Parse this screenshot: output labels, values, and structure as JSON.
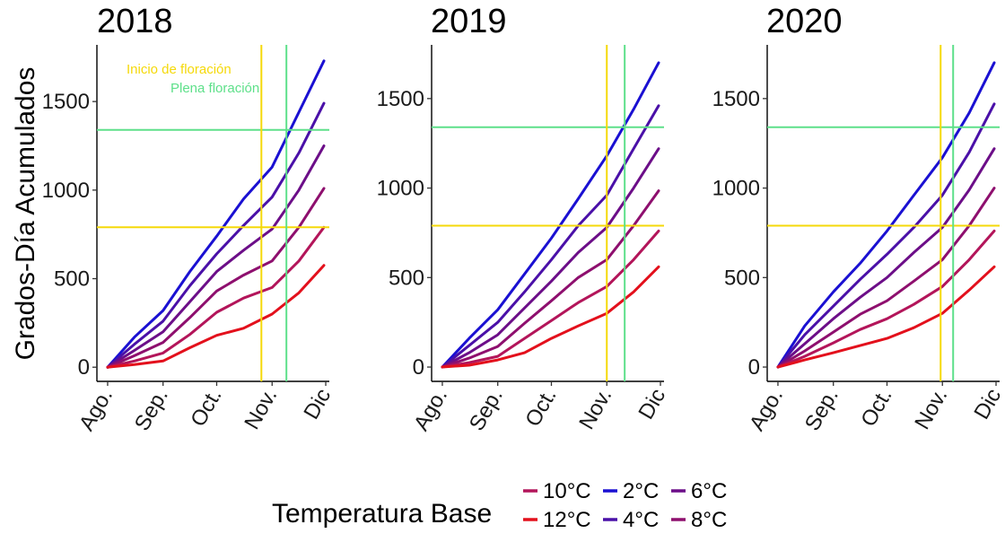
{
  "figure": {
    "ylabel": "Grados-Día Acumulados",
    "legend": {
      "title": "Temperatura Base",
      "items": [
        {
          "label": "10°C",
          "color": "#B3155A"
        },
        {
          "label": "12°C",
          "color": "#E3101C"
        },
        {
          "label": "2°C",
          "color": "#1A10D2"
        },
        {
          "label": "4°C",
          "color": "#4A10A8"
        },
        {
          "label": "6°C",
          "color": "#6C0E88"
        },
        {
          "label": "8°C",
          "color": "#8E0F6E"
        }
      ]
    },
    "annotations": {
      "inicio": {
        "text": "Inicio de floración",
        "color": "#F5D90A"
      },
      "plena": {
        "text": "Plena floración",
        "color": "#5EE08A"
      }
    }
  },
  "chart_data": [
    {
      "type": "line",
      "title": "2018",
      "x_tick_labels": [
        "Ago.",
        "Sep.",
        "Oct.",
        "Nov.",
        "Dic"
      ],
      "x_tick_days": [
        0,
        31,
        61,
        92,
        122
      ],
      "xlim": [
        -6,
        124
      ],
      "ylim": [
        -80,
        1820
      ],
      "y_ticks": [
        0,
        500,
        1000,
        1500
      ],
      "hlines": [
        {
          "y": 790,
          "color": "#F5D90A"
        },
        {
          "y": 1340,
          "color": "#5EE08A"
        }
      ],
      "vlines": [
        {
          "x": 86,
          "color": "#F5D90A"
        },
        {
          "x": 100,
          "color": "#5EE08A"
        }
      ],
      "x": [
        0,
        15,
        31,
        46,
        61,
        76,
        92,
        107,
        121
      ],
      "series": [
        {
          "name": "2°C",
          "color": "#1A10D2",
          "values": [
            0,
            170,
            320,
            540,
            740,
            950,
            1130,
            1440,
            1730
          ]
        },
        {
          "name": "4°C",
          "color": "#4A10A8",
          "values": [
            0,
            130,
            260,
            460,
            640,
            800,
            960,
            1210,
            1490
          ]
        },
        {
          "name": "6°C",
          "color": "#6C0E88",
          "values": [
            0,
            95,
            200,
            370,
            540,
            660,
            780,
            1000,
            1250
          ]
        },
        {
          "name": "8°C",
          "color": "#8E0F6E",
          "values": [
            0,
            65,
            140,
            280,
            430,
            520,
            600,
            790,
            1010
          ]
        },
        {
          "name": "10°C",
          "color": "#B3155A",
          "values": [
            0,
            35,
            80,
            185,
            310,
            390,
            450,
            600,
            790
          ]
        },
        {
          "name": "12°C",
          "color": "#E3101C",
          "values": [
            0,
            15,
            35,
            110,
            180,
            220,
            300,
            420,
            575
          ]
        }
      ]
    },
    {
      "type": "line",
      "title": "2019",
      "x_tick_labels": [
        "Ago.",
        "Sep.",
        "Oct.",
        "Nov.",
        "Dic"
      ],
      "x_tick_days": [
        0,
        31,
        61,
        92,
        122
      ],
      "xlim": [
        -6,
        124
      ],
      "ylim": [
        -80,
        1800
      ],
      "y_ticks": [
        0,
        500,
        1000,
        1500
      ],
      "hlines": [
        {
          "y": 790,
          "color": "#F5D90A"
        },
        {
          "y": 1340,
          "color": "#5EE08A"
        }
      ],
      "vlines": [
        {
          "x": 92,
          "color": "#F5D90A"
        },
        {
          "x": 102,
          "color": "#5EE08A"
        }
      ],
      "x": [
        0,
        15,
        31,
        46,
        61,
        76,
        92,
        107,
        121
      ],
      "series": [
        {
          "name": "2°C",
          "color": "#1A10D2",
          "values": [
            0,
            160,
            320,
            520,
            720,
            940,
            1180,
            1440,
            1700
          ]
        },
        {
          "name": "4°C",
          "color": "#4A10A8",
          "values": [
            0,
            120,
            250,
            420,
            600,
            790,
            960,
            1220,
            1460
          ]
        },
        {
          "name": "6°C",
          "color": "#6C0E88",
          "values": [
            0,
            80,
            180,
            330,
            480,
            640,
            780,
            1000,
            1220
          ]
        },
        {
          "name": "8°C",
          "color": "#8E0F6E",
          "values": [
            0,
            50,
            115,
            245,
            370,
            500,
            600,
            790,
            985
          ]
        },
        {
          "name": "10°C",
          "color": "#B3155A",
          "values": [
            0,
            25,
            60,
            160,
            260,
            360,
            450,
            600,
            760
          ]
        },
        {
          "name": "12°C",
          "color": "#E3101C",
          "values": [
            0,
            10,
            40,
            80,
            160,
            230,
            300,
            420,
            560
          ]
        }
      ]
    },
    {
      "type": "line",
      "title": "2020",
      "x_tick_labels": [
        "Ago.",
        "Sep.",
        "Oct.",
        "Nov.",
        "Dic"
      ],
      "x_tick_days": [
        0,
        31,
        61,
        92,
        122
      ],
      "xlim": [
        -6,
        124
      ],
      "ylim": [
        -80,
        1800
      ],
      "y_ticks": [
        0,
        500,
        1000,
        1500
      ],
      "hlines": [
        {
          "y": 790,
          "color": "#F5D90A"
        },
        {
          "y": 1340,
          "color": "#5EE08A"
        }
      ],
      "vlines": [
        {
          "x": 91,
          "color": "#F5D90A"
        },
        {
          "x": 98,
          "color": "#5EE08A"
        }
      ],
      "x": [
        0,
        15,
        31,
        46,
        61,
        76,
        92,
        107,
        121
      ],
      "series": [
        {
          "name": "2°C",
          "color": "#1A10D2",
          "values": [
            0,
            230,
            420,
            580,
            760,
            960,
            1170,
            1420,
            1700
          ]
        },
        {
          "name": "4°C",
          "color": "#4A10A8",
          "values": [
            0,
            180,
            340,
            490,
            630,
            780,
            960,
            1200,
            1470
          ]
        },
        {
          "name": "6°C",
          "color": "#6C0E88",
          "values": [
            0,
            130,
            270,
            390,
            500,
            640,
            780,
            990,
            1220
          ]
        },
        {
          "name": "8°C",
          "color": "#8E0F6E",
          "values": [
            0,
            90,
            195,
            295,
            370,
            480,
            600,
            790,
            1000
          ]
        },
        {
          "name": "10°C",
          "color": "#B3155A",
          "values": [
            0,
            60,
            135,
            210,
            270,
            350,
            450,
            600,
            760
          ]
        },
        {
          "name": "12°C",
          "color": "#E3101C",
          "values": [
            0,
            40,
            80,
            120,
            160,
            220,
            300,
            430,
            560
          ]
        }
      ]
    }
  ]
}
